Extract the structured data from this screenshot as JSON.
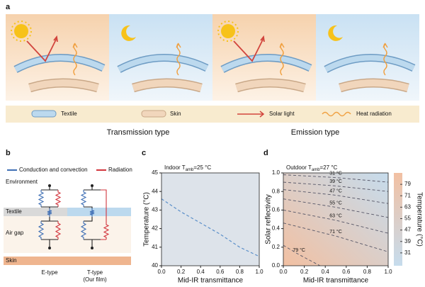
{
  "panel_a": {
    "label": "a",
    "legend": [
      "Textile",
      "Skin",
      "Solar light",
      "Heat radiation"
    ],
    "captions": [
      "Transmission type",
      "Emission type"
    ]
  },
  "panel_b": {
    "label": "b",
    "legend": [
      "Conduction and convection",
      "Radiation"
    ],
    "layers": [
      "Environment",
      "Textile",
      "Air gap",
      "Skin"
    ],
    "types": [
      "E-type",
      "T-type",
      "(Our film)"
    ]
  },
  "chart_data": [
    {
      "type": "line",
      "panel_label": "c",
      "title": {
        "text": "Indoor T",
        "sub": "amb",
        "tail": "=25 °C"
      },
      "x": [
        0,
        0.2,
        0.4,
        0.6,
        0.8,
        1.0
      ],
      "values": [
        43.6,
        42.9,
        42.3,
        41.7,
        41.0,
        40.5
      ],
      "color": "#5b8fc9",
      "background": "#dde3ea",
      "xlim": [
        0,
        1
      ],
      "ylim": [
        40,
        45
      ],
      "xticks": [
        {
          "value": 0,
          "label": "0.0"
        },
        {
          "value": 0.2,
          "label": "0.2"
        },
        {
          "value": 0.4,
          "label": "0.4"
        },
        {
          "value": 0.6,
          "label": "0.6"
        },
        {
          "value": 0.8,
          "label": "0.8"
        },
        {
          "value": 1,
          "label": "1.0"
        }
      ],
      "yticks": [
        40,
        41,
        42,
        43,
        44,
        45
      ],
      "xlabel": "Mid-IR transmittance",
      "ylabel": "Temperature (°C)"
    },
    {
      "type": "contour",
      "panel_label": "d",
      "title": {
        "text": "Outdoor T",
        "sub": "amb",
        "tail": "=27 °C"
      },
      "xlim": [
        0,
        1
      ],
      "ylim": [
        0,
        1
      ],
      "xticks": [
        {
          "value": 0,
          "label": "0.0"
        },
        {
          "value": 0.2,
          "label": "0.2"
        },
        {
          "value": 0.4,
          "label": "0.4"
        },
        {
          "value": 0.6,
          "label": "0.6"
        },
        {
          "value": 0.8,
          "label": "0.8"
        },
        {
          "value": 1,
          "label": "1.0"
        }
      ],
      "yticks": [
        {
          "value": 0,
          "label": "0.0"
        },
        {
          "value": 0.2,
          "label": "0.2"
        },
        {
          "value": 0.4,
          "label": "0.4"
        },
        {
          "value": 0.6,
          "label": "0.6"
        },
        {
          "value": 0.8,
          "label": "0.8"
        },
        {
          "value": 1,
          "label": "1.0"
        }
      ],
      "xlabel": "Mid-IR transmittance",
      "ylabel": "Solar reflectivity",
      "contours": [
        {
          "label": "31 °C",
          "x": [
            0,
            0.5,
            1
          ],
          "y": [
            0.98,
            0.95,
            0.9
          ]
        },
        {
          "label": "39 °C",
          "x": [
            0,
            0.5,
            1
          ],
          "y": [
            0.9,
            0.86,
            0.8
          ]
        },
        {
          "label": "47 °C",
          "x": [
            0,
            0.5,
            1
          ],
          "y": [
            0.82,
            0.76,
            0.67
          ]
        },
        {
          "label": "55 °C",
          "x": [
            0,
            0.5,
            1
          ],
          "y": [
            0.72,
            0.63,
            0.52
          ]
        },
        {
          "label": "63 °C",
          "x": [
            0,
            0.5,
            1
          ],
          "y": [
            0.6,
            0.49,
            0.35
          ]
        },
        {
          "label": "71 °C",
          "x": [
            0,
            0.5,
            1
          ],
          "y": [
            0.46,
            0.32,
            0.15
          ]
        },
        {
          "label": "79 °C",
          "x": [
            0,
            0.15,
            0.35
          ],
          "y": [
            0.22,
            0.12,
            0
          ]
        }
      ],
      "colorbar": {
        "label": "Temperature (°C)",
        "lim": [
          22,
          87
        ],
        "ticks": [
          31,
          39,
          47,
          55,
          63,
          71,
          79
        ],
        "colors": [
          "#c6dced",
          "#f2c0a2"
        ]
      }
    }
  ]
}
